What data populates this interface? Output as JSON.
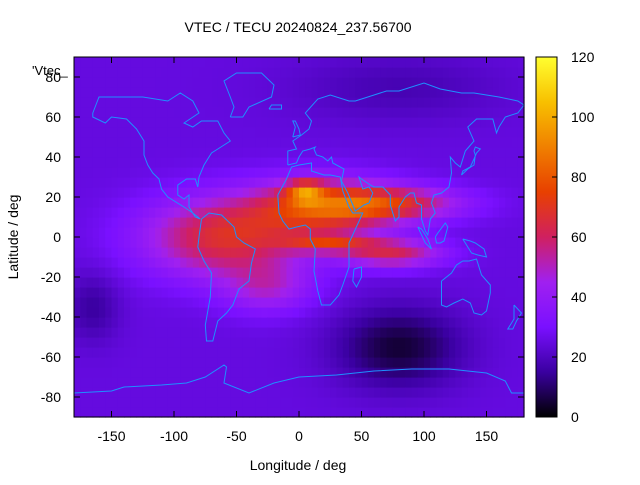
{
  "chart_data": {
    "type": "heatmap",
    "title": "VTEC / TECU 20240824_237.56700",
    "xlabel": "Longitude / deg",
    "ylabel": "Latitude / deg",
    "key_label": "'Vtec_",
    "xlim": [
      -180,
      180
    ],
    "ylim": [
      -90,
      90
    ],
    "x_ticks": [
      "-150",
      "-100",
      "-50",
      "0",
      "50",
      "100",
      "150"
    ],
    "x_tick_values": [
      -150,
      -100,
      -50,
      0,
      50,
      100,
      150
    ],
    "y_ticks": [
      "-80",
      "-60",
      "-40",
      "-20",
      "0",
      "20",
      "40",
      "60",
      "80"
    ],
    "y_tick_values": [
      -80,
      -60,
      -40,
      -20,
      0,
      20,
      40,
      60,
      80
    ],
    "colorbar": {
      "range": [
        0,
        120
      ],
      "ticks": [
        "0",
        "20",
        "40",
        "60",
        "80",
        "100",
        "120"
      ],
      "tick_values": [
        0,
        20,
        40,
        60,
        80,
        100,
        120
      ],
      "palette": [
        "#000000",
        "#3a00a0",
        "#7a10ff",
        "#a020f0",
        "#d02060",
        "#e84000",
        "#f08000",
        "#f8c000",
        "#ffff30"
      ]
    },
    "grid": false,
    "legend": "top-left",
    "coastline_color": "#1e90ff",
    "background_tec": 25,
    "features": [
      {
        "lon": -60,
        "lat": 0,
        "sigma_lon": 45,
        "sigma_lat": 14,
        "amp": 42
      },
      {
        "lon": 20,
        "lat": 15,
        "sigma_lon": 40,
        "sigma_lat": 10,
        "amp": 45
      },
      {
        "lon": 5,
        "lat": 23,
        "sigma_lon": 10,
        "sigma_lat": 4,
        "amp": 35
      },
      {
        "lon": 25,
        "lat": -3,
        "sigma_lon": 25,
        "sigma_lat": 3,
        "amp": 30
      },
      {
        "lon": 75,
        "lat": 17,
        "sigma_lon": 40,
        "sigma_lat": 6,
        "amp": 35
      },
      {
        "lon": 75,
        "lat": -8,
        "sigma_lon": 28,
        "sigma_lat": 5,
        "amp": 35
      },
      {
        "lon": -25,
        "lat": -25,
        "sigma_lon": 25,
        "sigma_lat": 9,
        "amp": 20
      },
      {
        "lon": 80,
        "lat": -55,
        "sigma_lon": 35,
        "sigma_lat": 14,
        "amp": -20
      },
      {
        "lon": -165,
        "lat": -35,
        "sigma_lon": 15,
        "sigma_lat": 12,
        "amp": -10
      },
      {
        "lon": 80,
        "lat": 75,
        "sigma_lon": 60,
        "sigma_lat": 12,
        "amp": -7
      }
    ]
  }
}
